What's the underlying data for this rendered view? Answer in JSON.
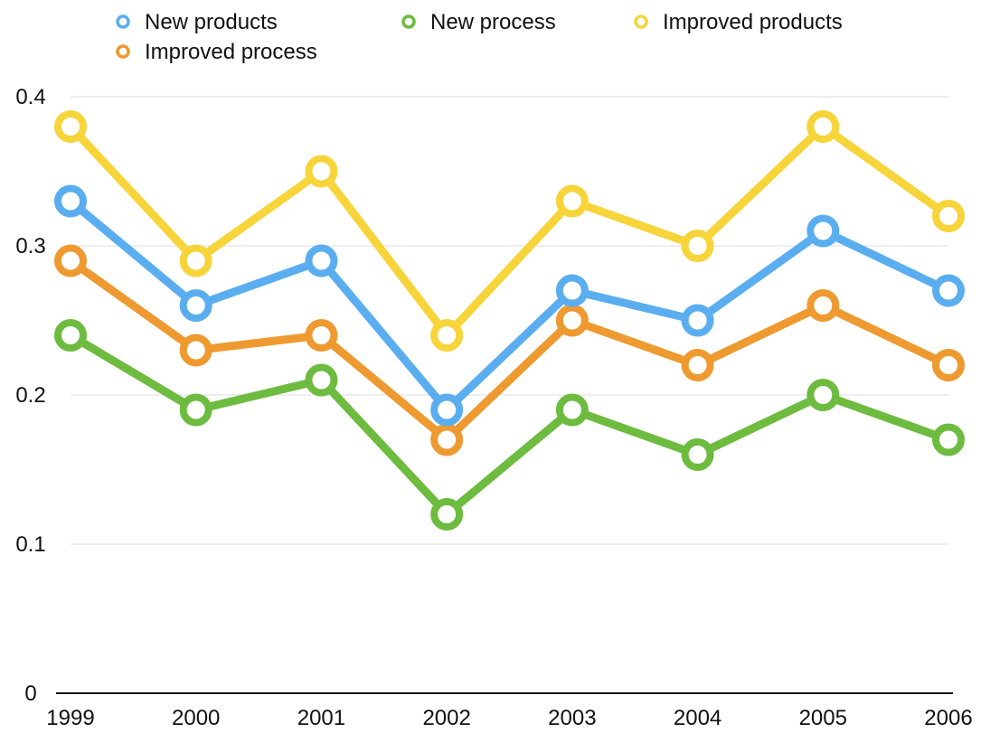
{
  "chart_data": {
    "type": "line",
    "title": "",
    "xlabel": "",
    "ylabel": "",
    "x": [
      "1999",
      "2000",
      "2001",
      "2002",
      "2003",
      "2004",
      "2005",
      "2006"
    ],
    "ylim": [
      0,
      0.4
    ],
    "yticks": [
      "0",
      "0.1",
      "0.2",
      "0.3",
      "0.4"
    ],
    "grid": "horizontal",
    "legend_position": "top",
    "series": [
      {
        "name": "New products",
        "color": "#5aaef0",
        "values": [
          0.33,
          0.26,
          0.29,
          0.19,
          0.27,
          0.25,
          0.31,
          0.27
        ]
      },
      {
        "name": "New process",
        "color": "#6dbb3f",
        "values": [
          0.24,
          0.19,
          0.21,
          0.12,
          0.19,
          0.16,
          0.2,
          0.17
        ]
      },
      {
        "name": "Improved products",
        "color": "#f7d43a",
        "values": [
          0.38,
          0.29,
          0.35,
          0.24,
          0.33,
          0.3,
          0.38,
          0.32
        ]
      },
      {
        "name": "Improved process",
        "color": "#ee9a30",
        "values": [
          0.29,
          0.23,
          0.24,
          0.17,
          0.25,
          0.22,
          0.26,
          0.22
        ]
      }
    ]
  }
}
